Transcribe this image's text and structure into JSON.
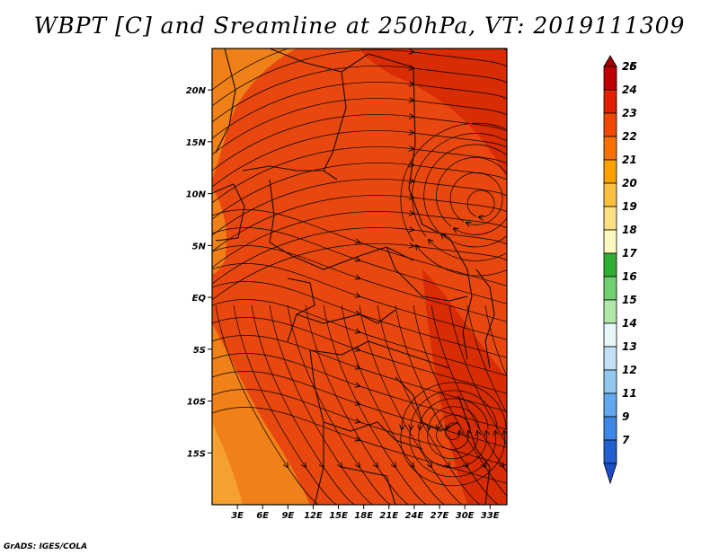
{
  "title": "WBPT [C] and Sreamline at 250hPa, VT: 2019111309",
  "credit": "GrADS: IGES/COLA",
  "map": {
    "lon_range": [
      0,
      35
    ],
    "lat_range": [
      -20,
      24
    ],
    "lat_ticks": [
      {
        "value": 20,
        "label": "20N"
      },
      {
        "value": 15,
        "label": "15N"
      },
      {
        "value": 10,
        "label": "10N"
      },
      {
        "value": 5,
        "label": "5N"
      },
      {
        "value": 0,
        "label": "EQ"
      },
      {
        "value": -5,
        "label": "5S"
      },
      {
        "value": -10,
        "label": "10S"
      },
      {
        "value": -15,
        "label": "15S"
      }
    ],
    "lon_ticks": [
      {
        "value": 3,
        "label": "3E"
      },
      {
        "value": 6,
        "label": "6E"
      },
      {
        "value": 9,
        "label": "9E"
      },
      {
        "value": 12,
        "label": "12E"
      },
      {
        "value": 15,
        "label": "15E"
      },
      {
        "value": 18,
        "label": "18E"
      },
      {
        "value": 21,
        "label": "21E"
      },
      {
        "value": 24,
        "label": "24E"
      },
      {
        "value": 27,
        "label": "27E"
      },
      {
        "value": 30,
        "label": "30E"
      },
      {
        "value": 33,
        "label": "33E"
      }
    ]
  },
  "colorbar": {
    "levels": [
      {
        "label": "26",
        "color": "#a00000"
      },
      {
        "label": "25",
        "color": "#c00000"
      },
      {
        "label": "24",
        "color": "#e02000"
      },
      {
        "label": "23",
        "color": "#f04800"
      },
      {
        "label": "22",
        "color": "#f87000"
      },
      {
        "label": "21",
        "color": "#fca000"
      },
      {
        "label": "20",
        "color": "#fcc040"
      },
      {
        "label": "19",
        "color": "#fce080"
      },
      {
        "label": "18",
        "color": "#fcf8c0"
      },
      {
        "label": "17",
        "color": "#30b030"
      },
      {
        "label": "16",
        "color": "#70d070"
      },
      {
        "label": "15",
        "color": "#b0e8a8"
      },
      {
        "label": "14",
        "color": "#e8f8f8"
      },
      {
        "label": "13",
        "color": "#c0e0f8"
      },
      {
        "label": "12",
        "color": "#90c8f0"
      },
      {
        "label": "11",
        "color": "#60a8f0"
      },
      {
        "label": "9",
        "color": "#3c88e8"
      },
      {
        "label": "7",
        "color": "#2060d0"
      }
    ],
    "bottom_color": "#1c4cc8"
  },
  "field_colors": {
    "main": "#e84810",
    "warm": "#d82c04",
    "cool": "#f08018",
    "cooler": "#f5a030"
  }
}
